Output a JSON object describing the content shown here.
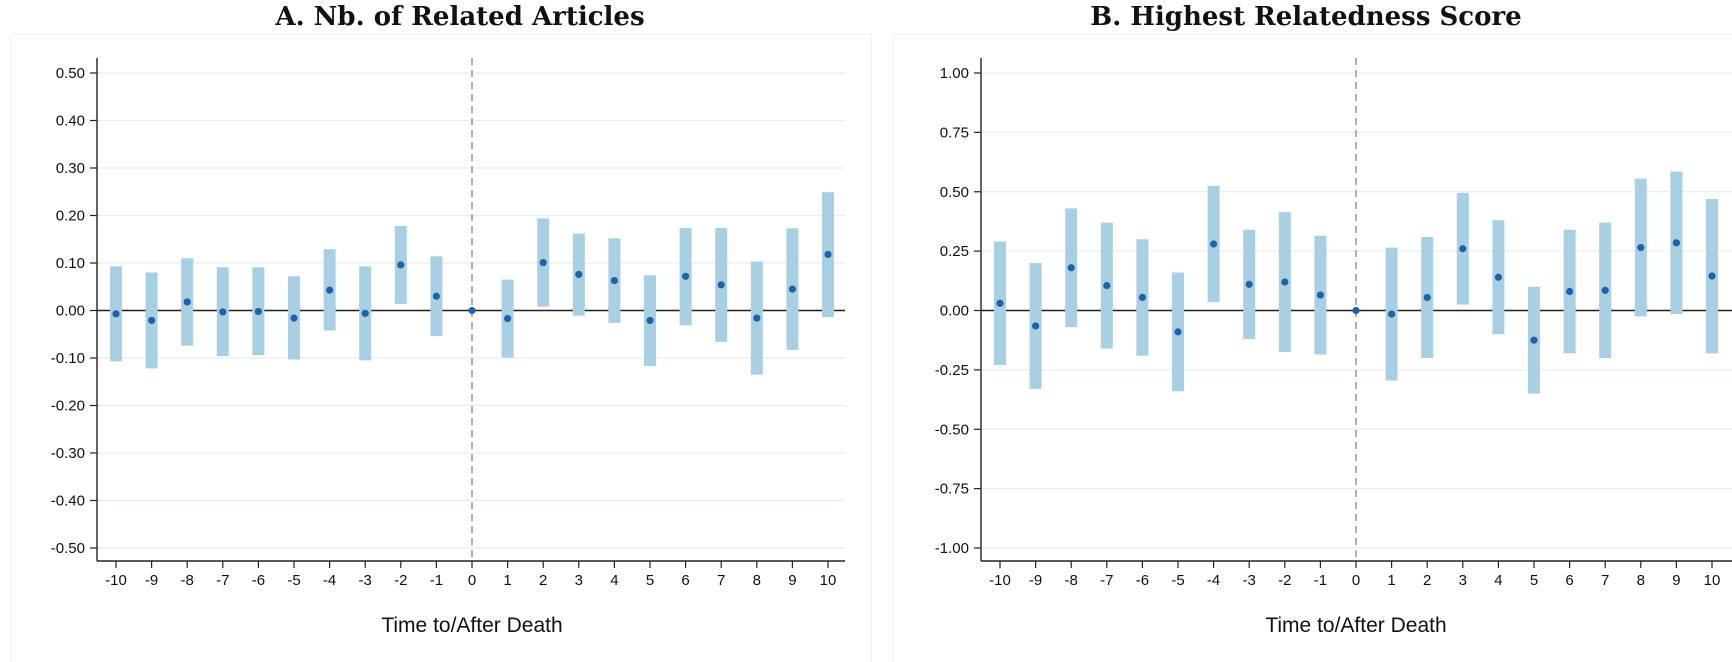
{
  "chart_data": [
    {
      "type": "scatter",
      "title": "A. Nb. of Related Articles",
      "xlabel": "Time to/After Death",
      "ylabel": "",
      "xlim": [
        -10,
        10
      ],
      "ylim": [
        -0.5,
        0.5
      ],
      "x_ticks": [
        "-10",
        "-9",
        "-8",
        "-7",
        "-6",
        "-5",
        "-4",
        "-3",
        "-2",
        "-1",
        "0",
        "1",
        "2",
        "3",
        "4",
        "5",
        "6",
        "7",
        "8",
        "9",
        "10"
      ],
      "y_ticks": [
        "0.50",
        "0.40",
        "0.30",
        "0.20",
        "0.10",
        "0.00",
        "-0.10",
        "-0.20",
        "-0.30",
        "-0.40",
        "-0.50"
      ],
      "grid": true,
      "reference_line": {
        "x": 0,
        "style": "dashed"
      },
      "zero_line": {
        "y": 0
      },
      "points": [
        {
          "x": -10,
          "y": -0.007,
          "ci": [
            -0.107,
            0.093
          ]
        },
        {
          "x": -9,
          "y": -0.021,
          "ci": [
            -0.122,
            0.08
          ]
        },
        {
          "x": -8,
          "y": 0.018,
          "ci": [
            -0.074,
            0.11
          ]
        },
        {
          "x": -7,
          "y": -0.003,
          "ci": [
            -0.096,
            0.091
          ]
        },
        {
          "x": -6,
          "y": -0.002,
          "ci": [
            -0.094,
            0.091
          ]
        },
        {
          "x": -5,
          "y": -0.016,
          "ci": [
            -0.103,
            0.072
          ]
        },
        {
          "x": -4,
          "y": 0.043,
          "ci": [
            -0.042,
            0.129
          ]
        },
        {
          "x": -3,
          "y": -0.006,
          "ci": [
            -0.105,
            0.093
          ]
        },
        {
          "x": -2,
          "y": 0.096,
          "ci": [
            0.014,
            0.178
          ]
        },
        {
          "x": -1,
          "y": 0.03,
          "ci": [
            -0.054,
            0.114
          ]
        },
        {
          "x": 0,
          "y": 0.0,
          "ci": [
            0.0,
            0.0
          ]
        },
        {
          "x": 1,
          "y": -0.017,
          "ci": [
            -0.099,
            0.065
          ]
        },
        {
          "x": 2,
          "y": 0.101,
          "ci": [
            0.008,
            0.194
          ]
        },
        {
          "x": 3,
          "y": 0.076,
          "ci": [
            -0.011,
            0.162
          ]
        },
        {
          "x": 4,
          "y": 0.063,
          "ci": [
            -0.026,
            0.152
          ]
        },
        {
          "x": 5,
          "y": -0.021,
          "ci": [
            -0.117,
            0.074
          ]
        },
        {
          "x": 6,
          "y": 0.072,
          "ci": [
            -0.031,
            0.174
          ]
        },
        {
          "x": 7,
          "y": 0.054,
          "ci": [
            -0.066,
            0.174
          ]
        },
        {
          "x": 8,
          "y": -0.016,
          "ci": [
            -0.135,
            0.103
          ]
        },
        {
          "x": 9,
          "y": 0.045,
          "ci": [
            -0.083,
            0.173
          ]
        },
        {
          "x": 10,
          "y": 0.118,
          "ci": [
            -0.014,
            0.249
          ]
        }
      ]
    },
    {
      "type": "scatter",
      "title": "B. Highest Relatedness Score",
      "xlabel": "Time to/After Death",
      "ylabel": "",
      "xlim": [
        -10,
        10
      ],
      "ylim": [
        -1.0,
        1.0
      ],
      "x_ticks": [
        "-10",
        "-9",
        "-8",
        "-7",
        "-6",
        "-5",
        "-4",
        "-3",
        "-2",
        "-1",
        "0",
        "1",
        "2",
        "3",
        "4",
        "5",
        "6",
        "7",
        "8",
        "9",
        "10"
      ],
      "y_ticks": [
        "1.00",
        "0.75",
        "0.50",
        "0.25",
        "0.00",
        "-0.25",
        "-0.50",
        "-0.75",
        "-1.00"
      ],
      "grid": true,
      "reference_line": {
        "x": 0,
        "style": "dashed"
      },
      "zero_line": {
        "y": 0
      },
      "points": [
        {
          "x": -10,
          "y": 0.03,
          "ci": [
            -0.23,
            0.29
          ]
        },
        {
          "x": -9,
          "y": -0.065,
          "ci": [
            -0.33,
            0.2
          ]
        },
        {
          "x": -8,
          "y": 0.18,
          "ci": [
            -0.07,
            0.43
          ]
        },
        {
          "x": -7,
          "y": 0.105,
          "ci": [
            -0.16,
            0.37
          ]
        },
        {
          "x": -6,
          "y": 0.055,
          "ci": [
            -0.19,
            0.3
          ]
        },
        {
          "x": -5,
          "y": -0.09,
          "ci": [
            -0.34,
            0.16
          ]
        },
        {
          "x": -4,
          "y": 0.28,
          "ci": [
            0.035,
            0.525
          ]
        },
        {
          "x": -3,
          "y": 0.11,
          "ci": [
            -0.12,
            0.34
          ]
        },
        {
          "x": -2,
          "y": 0.12,
          "ci": [
            -0.175,
            0.415
          ]
        },
        {
          "x": -1,
          "y": 0.065,
          "ci": [
            -0.185,
            0.315
          ]
        },
        {
          "x": 0,
          "y": 0.0,
          "ci": [
            0.0,
            0.0
          ]
        },
        {
          "x": 1,
          "y": -0.015,
          "ci": [
            -0.295,
            0.265
          ]
        },
        {
          "x": 2,
          "y": 0.055,
          "ci": [
            -0.2,
            0.31
          ]
        },
        {
          "x": 3,
          "y": 0.26,
          "ci": [
            0.025,
            0.495
          ]
        },
        {
          "x": 4,
          "y": 0.14,
          "ci": [
            -0.1,
            0.38
          ]
        },
        {
          "x": 5,
          "y": -0.125,
          "ci": [
            -0.35,
            0.1
          ]
        },
        {
          "x": 6,
          "y": 0.08,
          "ci": [
            -0.18,
            0.34
          ]
        },
        {
          "x": 7,
          "y": 0.085,
          "ci": [
            -0.2,
            0.37
          ]
        },
        {
          "x": 8,
          "y": 0.265,
          "ci": [
            -0.025,
            0.555
          ]
        },
        {
          "x": 9,
          "y": 0.285,
          "ci": [
            -0.015,
            0.585
          ]
        },
        {
          "x": 10,
          "y": 0.145,
          "ci": [
            -0.18,
            0.47
          ]
        }
      ]
    }
  ],
  "colors": {
    "ci_bar": "#a9cfe3",
    "point": "#1d63a8",
    "axis": "#222222",
    "grid": "#e6edf2",
    "ref_line": "#9a9a9a"
  }
}
